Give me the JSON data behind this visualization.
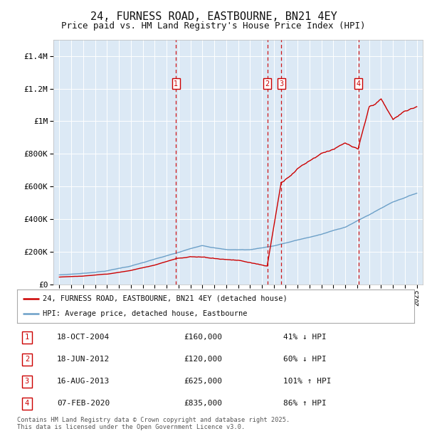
{
  "title": "24, FURNESS ROAD, EASTBOURNE, BN21 4EY",
  "subtitle": "Price paid vs. HM Land Registry's House Price Index (HPI)",
  "title_fontsize": 11,
  "subtitle_fontsize": 9,
  "background_color": "#ffffff",
  "plot_bg_color": "#dce9f5",
  "grid_color": "#ffffff",
  "ylim": [
    0,
    1500000
  ],
  "yticks": [
    0,
    200000,
    400000,
    600000,
    800000,
    1000000,
    1200000,
    1400000
  ],
  "ytick_labels": [
    "£0",
    "£200K",
    "£400K",
    "£600K",
    "£800K",
    "£1M",
    "£1.2M",
    "£1.4M"
  ],
  "xlim_start": 1994.5,
  "xlim_end": 2025.5,
  "sales": [
    {
      "num": 1,
      "date": "18-OCT-2004",
      "price": 160000,
      "pct": "41%",
      "dir": "↓",
      "year": 2004.79
    },
    {
      "num": 2,
      "date": "18-JUN-2012",
      "price": 120000,
      "pct": "60%",
      "dir": "↓",
      "year": 2012.46
    },
    {
      "num": 3,
      "date": "16-AUG-2013",
      "price": 625000,
      "pct": "101%",
      "dir": "↑",
      "year": 2013.62
    },
    {
      "num": 4,
      "date": "07-FEB-2020",
      "price": 835000,
      "pct": "86%",
      "dir": "↑",
      "year": 2020.1
    }
  ],
  "red_line_color": "#cc0000",
  "blue_line_color": "#6ca0c8",
  "vline_color": "#cc0000",
  "legend_label_red": "24, FURNESS ROAD, EASTBOURNE, BN21 4EY (detached house)",
  "legend_label_blue": "HPI: Average price, detached house, Eastbourne",
  "footer": "Contains HM Land Registry data © Crown copyright and database right 2025.\nThis data is licensed under the Open Government Licence v3.0.",
  "hpi_waypoints_x": [
    1995,
    1997,
    1999,
    2001,
    2003,
    2005,
    2007,
    2009,
    2011,
    2013,
    2015,
    2017,
    2019,
    2021,
    2023,
    2025
  ],
  "hpi_waypoints_y": [
    58000,
    68000,
    85000,
    115000,
    155000,
    195000,
    240000,
    215000,
    215000,
    240000,
    275000,
    310000,
    355000,
    430000,
    510000,
    565000
  ],
  "red_waypoints_x_seg1": [
    1995,
    1997,
    1999,
    2001,
    2003,
    2004.79
  ],
  "red_waypoints_y_seg1": [
    45000,
    52000,
    65000,
    88000,
    120000,
    160000
  ],
  "red_waypoints_x_seg2": [
    2004.79,
    2006,
    2008,
    2010,
    2012.46
  ],
  "red_waypoints_y_seg2": [
    160000,
    175000,
    165000,
    155000,
    120000
  ],
  "red_waypoints_x_seg3": [
    2013.62,
    2015,
    2017,
    2019,
    2020.1
  ],
  "red_waypoints_y_seg3": [
    625000,
    720000,
    820000,
    880000,
    835000
  ],
  "red_waypoints_x_seg4": [
    2020.1,
    2021,
    2022,
    2023,
    2024,
    2025
  ],
  "red_waypoints_y_seg4": [
    835000,
    1080000,
    1130000,
    1000000,
    1050000,
    1080000
  ]
}
